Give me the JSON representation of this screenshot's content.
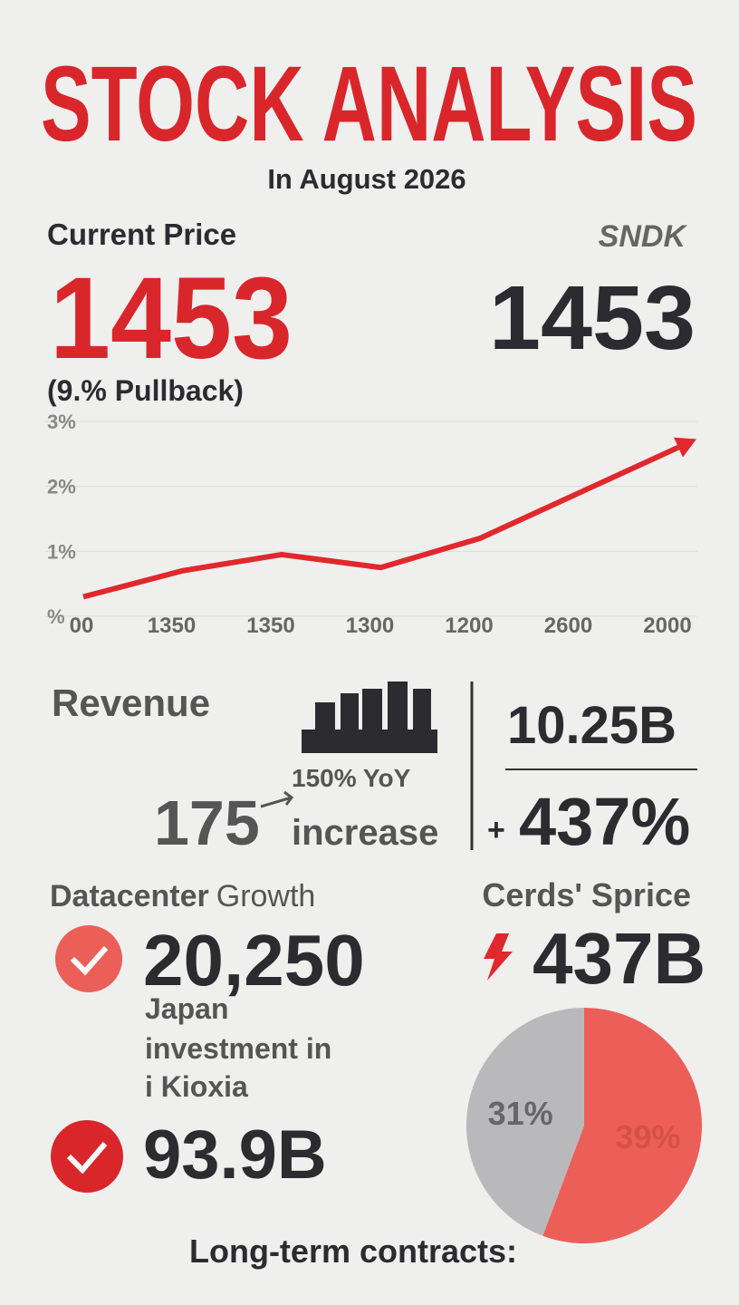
{
  "header": {
    "title": "STOCK ANALYSIS",
    "subtitle": "In August 2026"
  },
  "price": {
    "label": "Current Price",
    "value": "1453",
    "note": "(9.% Pullback)",
    "ticker": "SNDK",
    "ticker_value": "1453"
  },
  "revenue": {
    "label": "Revenue",
    "yoy": "150% YoY",
    "number": "175",
    "increase": "increase",
    "total": "10.25B",
    "sign": "+",
    "growth": "437%"
  },
  "datacenter": {
    "label": "Datacenter",
    "label2": "Growth",
    "value": "20,250",
    "line1": "Japan",
    "line2": "investment in",
    "line3": "i Kioxia",
    "value2": "93.9B"
  },
  "cards": {
    "label": "Cerds' Sprice",
    "value": "437B"
  },
  "footer": {
    "text": "Long-term contracts:"
  },
  "chart_data": [
    {
      "type": "line",
      "categories": [
        "00",
        "1350",
        "1350",
        "1300",
        "1200",
        "2600",
        "2000"
      ],
      "series": [
        {
          "color": "#e0282d",
          "values": [
            0.3,
            0.7,
            0.95,
            0.75,
            1.2,
            1.9,
            2.6
          ]
        }
      ],
      "ylim": [
        0,
        3
      ],
      "yticks": [
        {
          "value": 0,
          "label": "%"
        },
        {
          "value": 1,
          "label": "1%"
        },
        {
          "value": 2,
          "label": "2%"
        },
        {
          "value": 3,
          "label": "3%"
        }
      ],
      "grid": true
    },
    {
      "type": "pie",
      "values": [
        39,
        31
      ],
      "value_labels": [
        "39%",
        "31%"
      ],
      "colors": [
        "#ec5f58",
        "#b9b9bc"
      ]
    }
  ]
}
